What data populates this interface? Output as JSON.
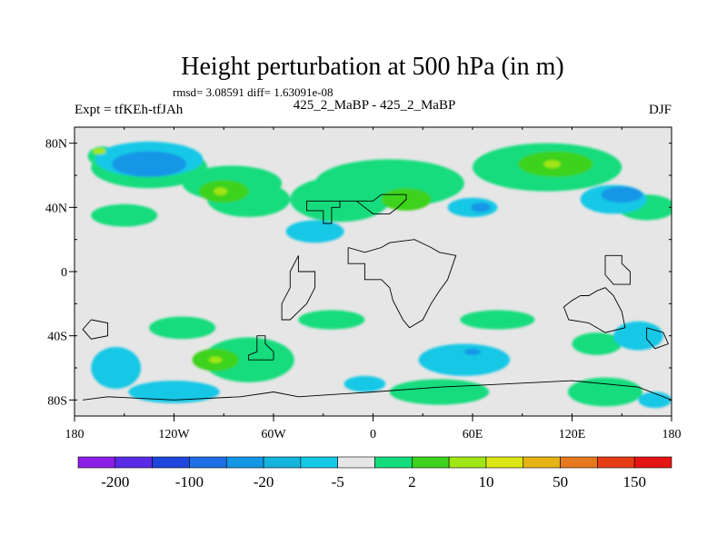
{
  "chart_data": {
    "type": "heatmap",
    "title": "Height perturbation at 500 hPa (in m)",
    "stats": "rmsd= 3.08591 diff= 1.63091e-08",
    "left_label": "Expt = tfKEh-tfJAh",
    "center_label": "425_2_MaBP - 425_2_MaBP",
    "right_label": "DJF",
    "x_ticks": [
      "180",
      "120W",
      "60W",
      "0",
      "60E",
      "120E",
      "180"
    ],
    "y_ticks": [
      "80N",
      "40N",
      "0",
      "40S",
      "80S"
    ],
    "xlim": [
      -180,
      180
    ],
    "ylim": [
      -90,
      90
    ],
    "colorbar": {
      "colors": [
        "#8c1ee6",
        "#5a2ae6",
        "#1e46dc",
        "#1e6ee6",
        "#1496e6",
        "#14b4dc",
        "#14c8e6",
        "#e6e6e6",
        "#14dc7d",
        "#3cd21e",
        "#a0e614",
        "#dce614",
        "#e6b414",
        "#e6781e",
        "#e63c14",
        "#e61414"
      ],
      "labels": [
        "-200",
        "-100",
        "-20",
        "-5",
        "2",
        "10",
        "50",
        "150"
      ]
    },
    "regions": [
      {
        "level": 2,
        "lon": -163,
        "lat": 72,
        "w": 18,
        "h": 12
      },
      {
        "level": 2,
        "lon": -135,
        "lat": 65,
        "w": 70,
        "h": 26
      },
      {
        "level": 2,
        "lon": -85,
        "lat": 55,
        "w": 60,
        "h": 22
      },
      {
        "level": 2,
        "lon": -20,
        "lat": 45,
        "w": 60,
        "h": 28
      },
      {
        "level": 2,
        "lon": 10,
        "lat": 55,
        "w": 90,
        "h": 30
      },
      {
        "level": 2,
        "lon": 105,
        "lat": 65,
        "w": 90,
        "h": 30
      },
      {
        "level": 2,
        "lon": -150,
        "lat": 35,
        "w": 40,
        "h": 14
      },
      {
        "level": 2,
        "lon": -75,
        "lat": 45,
        "w": 50,
        "h": 22
      },
      {
        "level": 2,
        "lon": 165,
        "lat": 40,
        "w": 35,
        "h": 16
      },
      {
        "level": 2,
        "lon": -115,
        "lat": -35,
        "w": 40,
        "h": 14
      },
      {
        "level": 2,
        "lon": -75,
        "lat": -55,
        "w": 55,
        "h": 28
      },
      {
        "level": 2,
        "lon": -25,
        "lat": -30,
        "w": 40,
        "h": 12
      },
      {
        "level": 2,
        "lon": 40,
        "lat": -75,
        "w": 60,
        "h": 16
      },
      {
        "level": 2,
        "lon": 75,
        "lat": -30,
        "w": 45,
        "h": 12
      },
      {
        "level": 2,
        "lon": 135,
        "lat": -45,
        "w": 30,
        "h": 14
      },
      {
        "level": 2,
        "lon": 140,
        "lat": -75,
        "w": 45,
        "h": 18
      },
      {
        "level": 10,
        "lon": -90,
        "lat": 50,
        "w": 30,
        "h": 14
      },
      {
        "level": 10,
        "lon": 110,
        "lat": 67,
        "w": 45,
        "h": 16
      },
      {
        "level": 10,
        "lon": -95,
        "lat": -55,
        "w": 28,
        "h": 14
      },
      {
        "level": 10,
        "lon": 20,
        "lat": 45,
        "w": 30,
        "h": 14
      },
      {
        "level": 50,
        "lon": -92,
        "lat": 50,
        "w": 8,
        "h": 5
      },
      {
        "level": 50,
        "lon": 108,
        "lat": 67,
        "w": 10,
        "h": 5
      },
      {
        "level": 50,
        "lon": -95,
        "lat": -55,
        "w": 8,
        "h": 4
      },
      {
        "level": 50,
        "lon": -165,
        "lat": 75,
        "w": 8,
        "h": 4
      },
      {
        "level": -2,
        "lon": -135,
        "lat": 70,
        "w": 65,
        "h": 22
      },
      {
        "level": -2,
        "lon": -35,
        "lat": 25,
        "w": 35,
        "h": 14
      },
      {
        "level": -2,
        "lon": 60,
        "lat": 40,
        "w": 30,
        "h": 12
      },
      {
        "level": -2,
        "lon": 145,
        "lat": 45,
        "w": 40,
        "h": 18
      },
      {
        "level": -2,
        "lon": -155,
        "lat": -60,
        "w": 30,
        "h": 26
      },
      {
        "level": -2,
        "lon": -120,
        "lat": -75,
        "w": 55,
        "h": 14
      },
      {
        "level": -2,
        "lon": 55,
        "lat": -55,
        "w": 55,
        "h": 20
      },
      {
        "level": -2,
        "lon": -5,
        "lat": -70,
        "w": 25,
        "h": 10
      },
      {
        "level": -2,
        "lon": 160,
        "lat": -40,
        "w": 30,
        "h": 18
      },
      {
        "level": -2,
        "lon": 170,
        "lat": -80,
        "w": 20,
        "h": 10
      },
      {
        "level": -5,
        "lon": -135,
        "lat": 67,
        "w": 45,
        "h": 16
      },
      {
        "level": -5,
        "lon": 65,
        "lat": 40,
        "w": 12,
        "h": 6
      },
      {
        "level": -5,
        "lon": 150,
        "lat": 48,
        "w": 25,
        "h": 10
      },
      {
        "level": -5,
        "lon": 60,
        "lat": -50,
        "w": 10,
        "h": 4
      }
    ],
    "land": [
      [
        [
          -40,
          44
        ],
        [
          -40,
          38
        ],
        [
          -30,
          38
        ],
        [
          -30,
          30
        ],
        [
          -25,
          30
        ],
        [
          -25,
          40
        ],
        [
          -20,
          40
        ],
        [
          -20,
          44
        ],
        [
          0,
          44
        ],
        [
          5,
          48
        ],
        [
          20,
          48
        ],
        [
          20,
          45
        ],
        [
          15,
          40
        ],
        [
          10,
          36
        ],
        [
          0,
          36
        ],
        [
          -5,
          40
        ],
        [
          -10,
          44
        ],
        [
          -20,
          44
        ],
        [
          -30,
          44
        ],
        [
          -40,
          44
        ]
      ],
      [
        [
          -15,
          15
        ],
        [
          -15,
          5
        ],
        [
          -5,
          5
        ],
        [
          -5,
          -5
        ],
        [
          5,
          -5
        ],
        [
          10,
          -10
        ],
        [
          12,
          -18
        ],
        [
          18,
          -30
        ],
        [
          22,
          -35
        ],
        [
          30,
          -30
        ],
        [
          35,
          -20
        ],
        [
          40,
          -12
        ],
        [
          45,
          -5
        ],
        [
          50,
          10
        ],
        [
          40,
          12
        ],
        [
          35,
          15
        ],
        [
          25,
          20
        ],
        [
          10,
          18
        ],
        [
          5,
          15
        ],
        [
          -5,
          12
        ],
        [
          -15,
          15
        ]
      ],
      [
        [
          -45,
          10
        ],
        [
          -45,
          0
        ],
        [
          -35,
          0
        ],
        [
          -35,
          -10
        ],
        [
          -40,
          -20
        ],
        [
          -45,
          -25
        ],
        [
          -50,
          -30
        ],
        [
          -55,
          -30
        ],
        [
          -55,
          -20
        ],
        [
          -50,
          -10
        ],
        [
          -50,
          0
        ],
        [
          -45,
          10
        ]
      ],
      [
        [
          -60,
          -55
        ],
        [
          -60,
          -50
        ],
        [
          -65,
          -45
        ],
        [
          -65,
          -40
        ],
        [
          -70,
          -40
        ],
        [
          -70,
          -50
        ],
        [
          -75,
          -52
        ],
        [
          -75,
          -55
        ],
        [
          -60,
          -55
        ]
      ],
      [
        [
          125,
          -15
        ],
        [
          130,
          -15
        ],
        [
          135,
          -12
        ],
        [
          140,
          -10
        ],
        [
          145,
          -15
        ],
        [
          150,
          -25
        ],
        [
          152,
          -35
        ],
        [
          140,
          -38
        ],
        [
          130,
          -32
        ],
        [
          118,
          -30
        ],
        [
          115,
          -22
        ],
        [
          120,
          -18
        ],
        [
          125,
          -15
        ]
      ],
      [
        [
          140,
          10
        ],
        [
          150,
          10
        ],
        [
          150,
          5
        ],
        [
          155,
          0
        ],
        [
          155,
          -8
        ],
        [
          145,
          -8
        ],
        [
          140,
          -2
        ],
        [
          140,
          10
        ]
      ],
      [
        [
          165,
          -35
        ],
        [
          175,
          -38
        ],
        [
          178,
          -45
        ],
        [
          170,
          -48
        ],
        [
          165,
          -42
        ],
        [
          165,
          -35
        ]
      ],
      [
        [
          -175,
          -80
        ],
        [
          -160,
          -78
        ],
        [
          -120,
          -80
        ],
        [
          -80,
          -78
        ],
        [
          -60,
          -75
        ],
        [
          -45,
          -78
        ],
        [
          0,
          -75
        ],
        [
          40,
          -72
        ],
        [
          80,
          -70
        ],
        [
          120,
          -68
        ],
        [
          160,
          -72
        ],
        [
          180,
          -80
        ]
      ],
      [
        [
          -170,
          -30
        ],
        [
          -160,
          -32
        ],
        [
          -160,
          -40
        ],
        [
          -170,
          -42
        ],
        [
          -175,
          -36
        ],
        [
          -170,
          -30
        ]
      ]
    ]
  }
}
